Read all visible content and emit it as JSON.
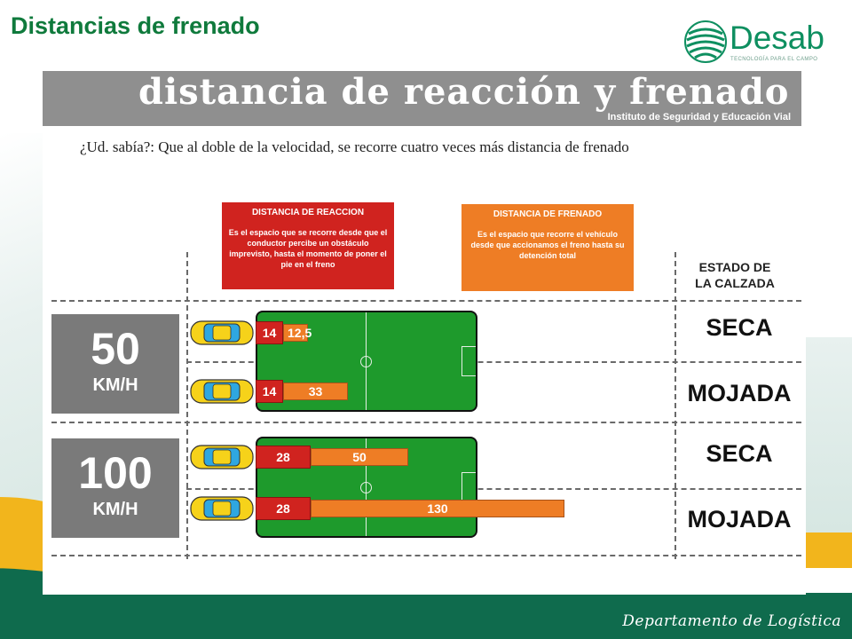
{
  "slide": {
    "title": "Distancias de frenado",
    "footer": "Departamento de Logística"
  },
  "logo": {
    "name": "Desab",
    "tagline": "TECNOLOGÍA PARA EL CAMPO",
    "color": "#0e8f60"
  },
  "infographic": {
    "banner_title": "distancia de reacción y frenado",
    "banner_subtitle": "Instituto de Seguridad y Educación Vial",
    "question": "¿Ud. sabía?: Que al doble de la velocidad, se recorre cuatro veces más  distancia de frenado",
    "legend": {
      "reaction": {
        "title": "DISTANCIA DE REACCION",
        "text": "Es el espacio que se recorre desde que el conductor percibe un obstáculo imprevisto, hasta el momento de poner el pie en el freno",
        "color": "#d0231f"
      },
      "braking": {
        "title": "DISTANCIA DE FRENADO",
        "text": "Es el espacio que  recorre el vehículo desde que accionamos el freno hasta su detención total",
        "color": "#ee7d25"
      }
    },
    "state_header": [
      "ESTADO DE",
      "LA CALZADA"
    ],
    "groups": [
      {
        "speed": "50",
        "unit": "KM/H",
        "rows": [
          {
            "reaction": "14",
            "braking": "12,5",
            "reaction_m": 14,
            "braking_m": 12.5,
            "state": "SECA"
          },
          {
            "reaction": "14",
            "braking": "33",
            "reaction_m": 14,
            "braking_m": 33,
            "state": "MOJADA"
          }
        ]
      },
      {
        "speed": "100",
        "unit": "KM/H",
        "rows": [
          {
            "reaction": "28",
            "braking": "50",
            "reaction_m": 28,
            "braking_m": 50,
            "state": "SECA"
          },
          {
            "reaction": "28",
            "braking": "130",
            "reaction_m": 28,
            "braking_m": 130,
            "state": "MOJADA"
          }
        ]
      }
    ]
  }
}
